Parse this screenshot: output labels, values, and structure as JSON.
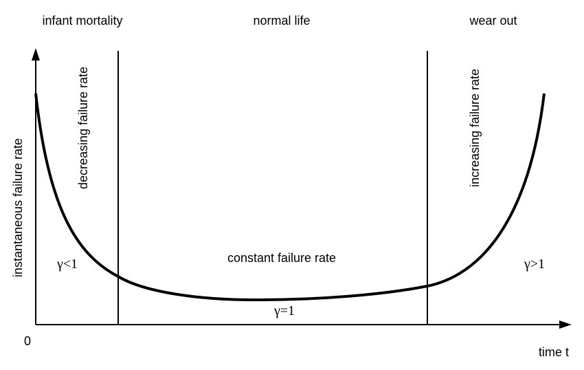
{
  "phases": {
    "infant": "infant mortality",
    "normal": "normal life",
    "wearout": "wear out"
  },
  "axes": {
    "y_label": "instantaneous failure rate",
    "x_label": "time t",
    "origin": "0"
  },
  "regions": {
    "decreasing": "decreasing failure rate",
    "constant": "constant failure rate",
    "increasing": "increasing failure rate"
  },
  "gamma": {
    "lt1": "γ<1",
    "eq1": "γ=1",
    "gt1": "γ>1"
  },
  "style": {
    "line_color": "#000000",
    "background": "#ffffff"
  }
}
